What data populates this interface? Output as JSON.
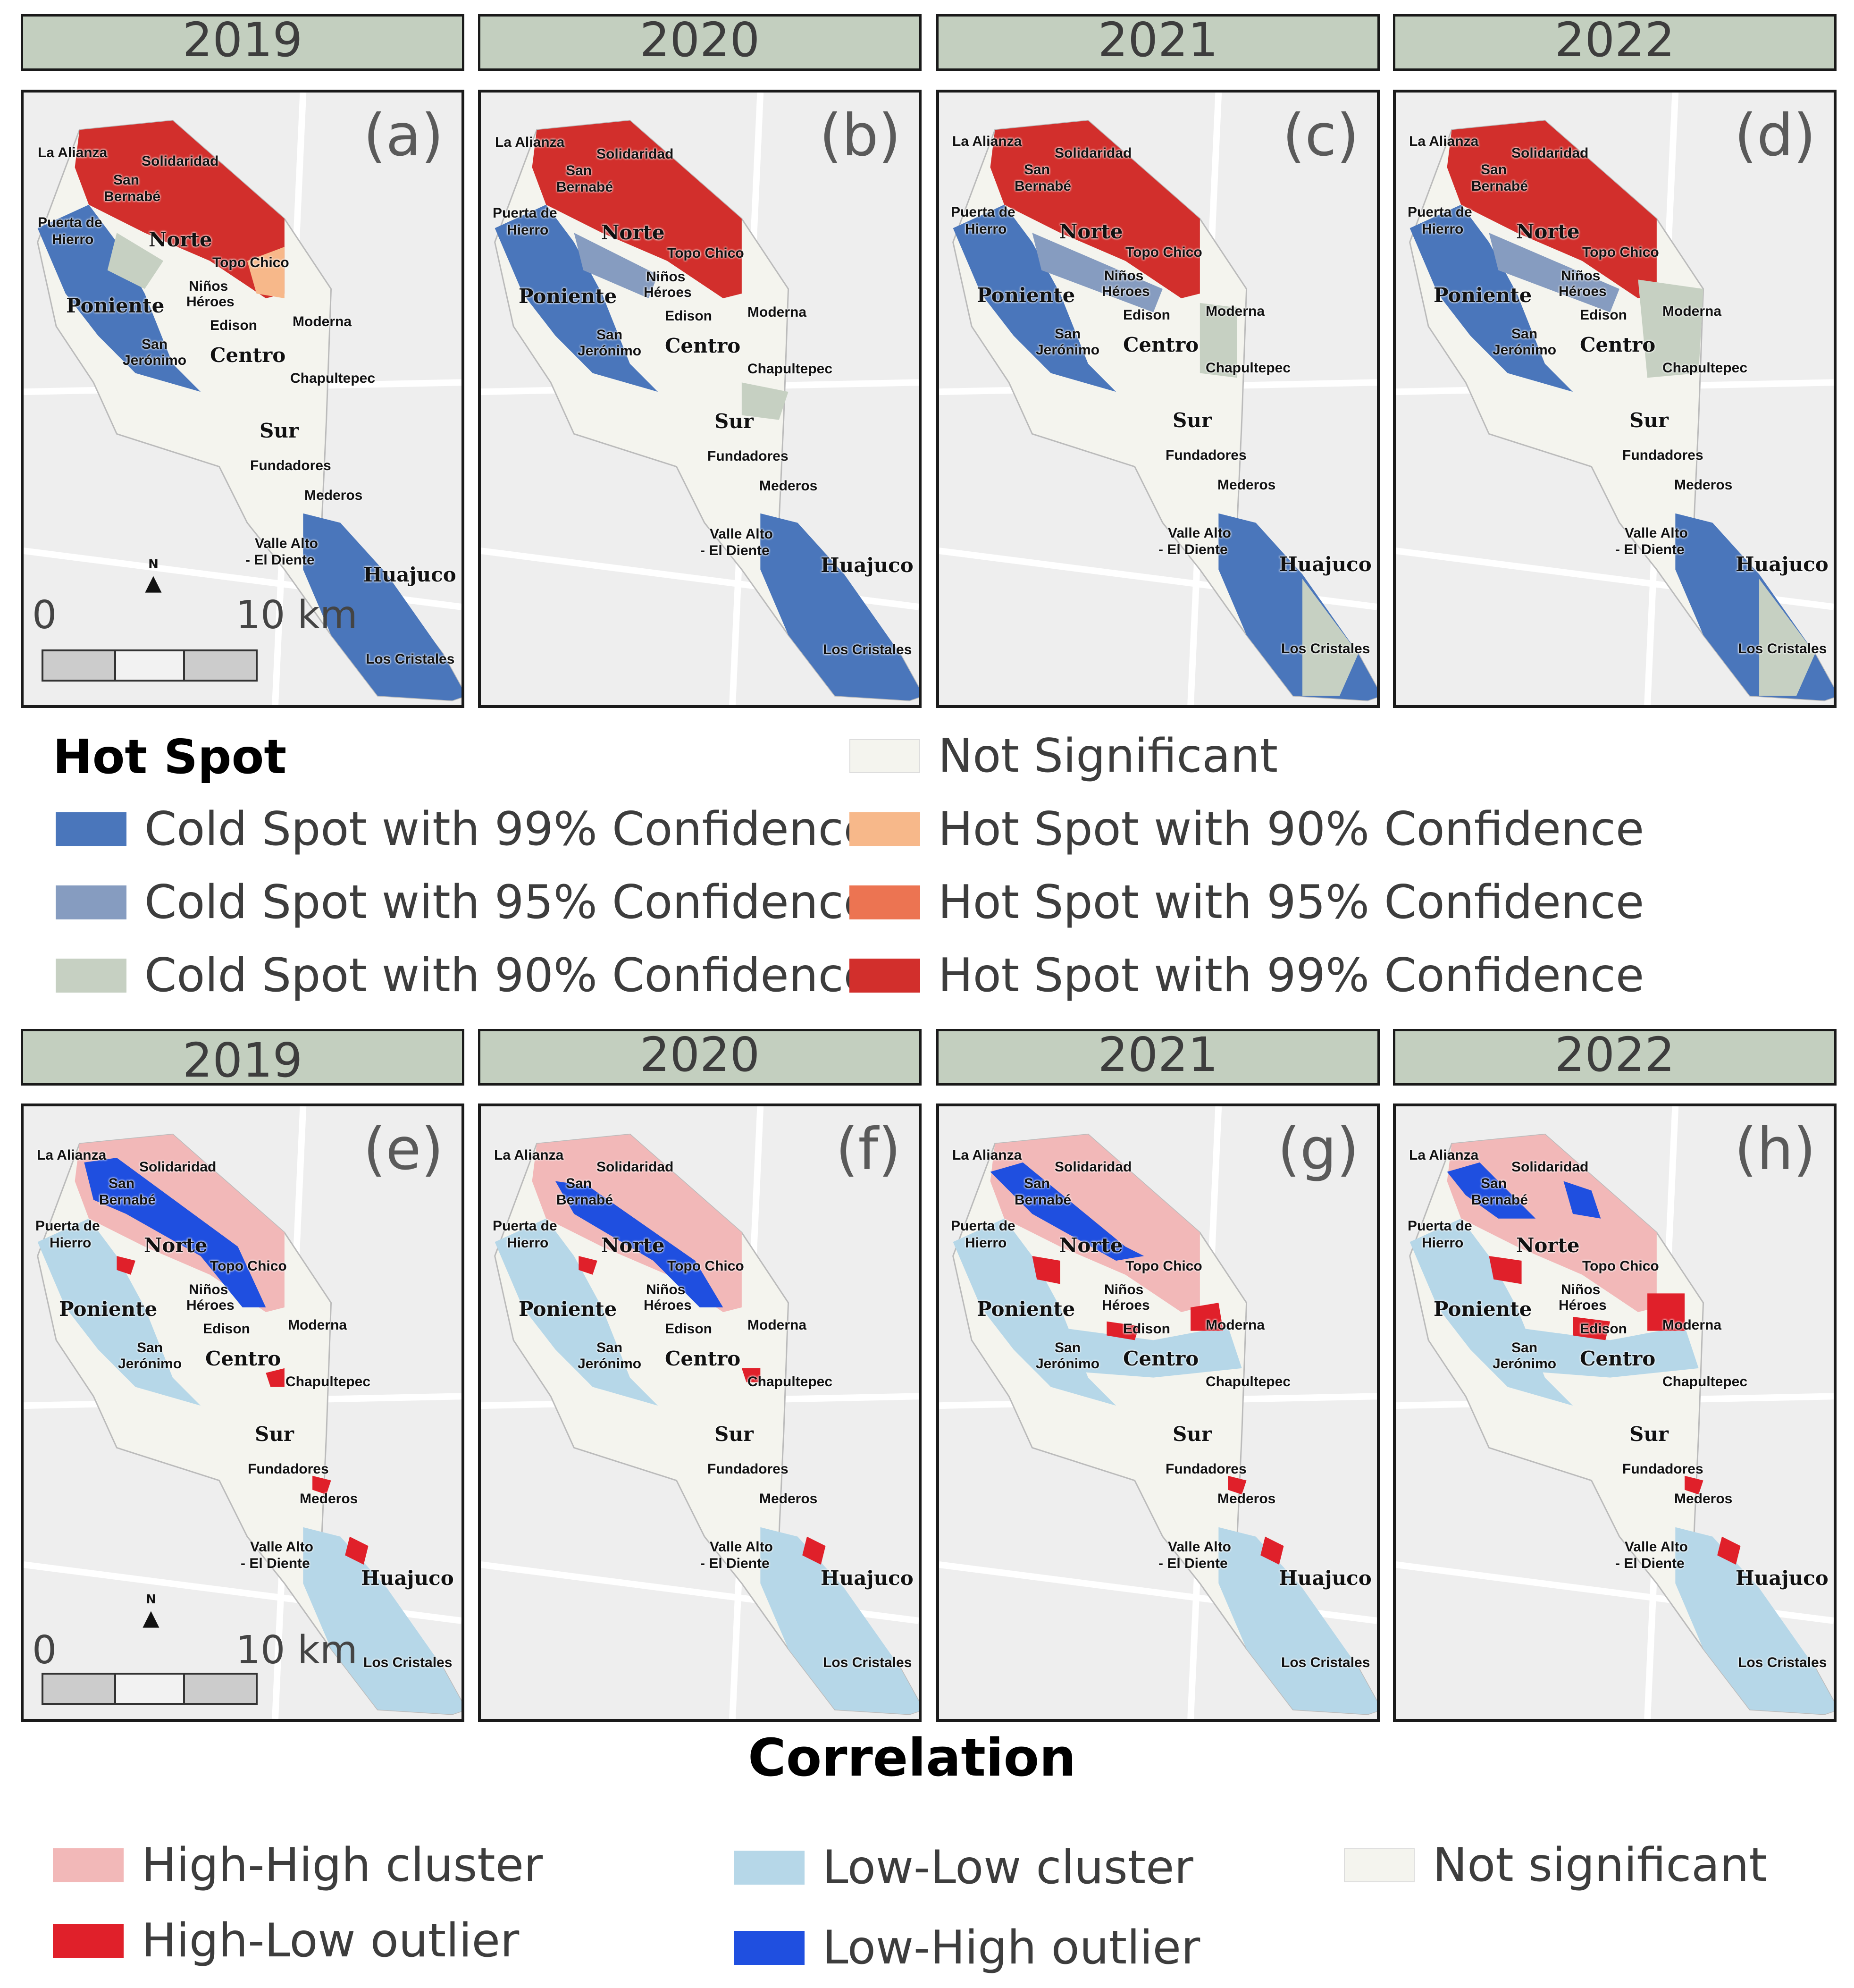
{
  "years": [
    "2019",
    "2020",
    "2021",
    "2022"
  ],
  "hotspot_panel_letters": [
    "(a)",
    "(b)",
    "(c)",
    "(d)"
  ],
  "correlation_panel_letters": [
    "(e)",
    "(f)",
    "(g)",
    "(h)"
  ],
  "places": {
    "la_alianza": "La Alianza",
    "solidaridad": "Solidaridad",
    "san": "San",
    "bernabe": "Bernabé",
    "puerta_de": "Puerta de",
    "hierro": "Hierro",
    "norte": "Norte",
    "topo_chico": "Topo Chico",
    "ninos": "Niños",
    "heroes": "Héroes",
    "poniente": "Poniente",
    "edison": "Edison",
    "moderna": "Moderna",
    "jeronimo": "Jerónimo",
    "centro": "Centro",
    "chapultepec": "Chapultepec",
    "sur": "Sur",
    "fundadores": "Fundadores",
    "mederos": "Mederos",
    "valle_alto": "Valle Alto",
    "el_diente": "- El Diente",
    "huajuco": "Huajuco",
    "los_cristales": "Los Cristales"
  },
  "scale": {
    "zero": "0",
    "distance": "10 km",
    "north": "N"
  },
  "hotspot_legend": {
    "title": "Hot Spot",
    "items": [
      {
        "label": "Cold Spot with 99% Confidence",
        "color": "#4a76bb"
      },
      {
        "label": "Cold Spot with 95% Confidence",
        "color": "#869cc0"
      },
      {
        "label": "Cold Spot with 90% Confidence",
        "color": "#c6d0c2"
      },
      {
        "label": "Not Significant",
        "color": "#f4f4ee"
      },
      {
        "label": "Hot Spot with 90% Confidence",
        "color": "#f7b88a"
      },
      {
        "label": "Hot Spot with 95% Confidence",
        "color": "#ec7452"
      },
      {
        "label": "Hot Spot with 99% Confidence",
        "color": "#d22f2c"
      }
    ]
  },
  "correlation_legend": {
    "title": "Correlation",
    "items": [
      {
        "label": "High-High cluster",
        "color": "#f2b8b8"
      },
      {
        "label": "High-Low outlier",
        "color": "#e0202a"
      },
      {
        "label": "Low-Low cluster",
        "color": "#b6d7e8"
      },
      {
        "label": "Low-High outlier",
        "color": "#1f4fe0"
      },
      {
        "label": "Not significant",
        "color": "#f4f4ee"
      }
    ]
  },
  "colors": {
    "header_bg": "#c3cfbf",
    "background_map": "#eeeeee",
    "city_base": "#f4f4ee"
  }
}
